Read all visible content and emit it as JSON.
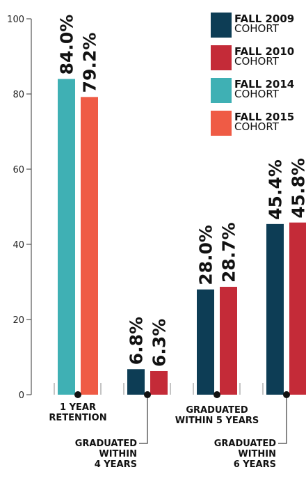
{
  "chart_data": {
    "type": "bar",
    "categories": [
      "1 YEAR\nRETENTION",
      "GRADUATED\nWITHIN\n4 YEARS",
      "GRADUATED\nWITHIN 5 YEARS",
      "GRADUATED\nWITHIN\n6 YEARS"
    ],
    "series": [
      {
        "name": "FALL 2009\nCOHORT",
        "color": "#0d3d55",
        "values": [
          null,
          6.8,
          28.0,
          45.4
        ],
        "value_labels": [
          null,
          "6.8%",
          "28.0%",
          "45.4%"
        ]
      },
      {
        "name": "FALL 2010\nCOHORT",
        "color": "#c42b38",
        "values": [
          null,
          6.3,
          28.7,
          45.8
        ],
        "value_labels": [
          null,
          "6.3%",
          "28.7%",
          "45.8%"
        ]
      },
      {
        "name": "FALL 2014\nCOHORT",
        "color": "#3fb0b4",
        "values": [
          84.0,
          null,
          null,
          null
        ],
        "value_labels": [
          "84.0%",
          null,
          null,
          null
        ]
      },
      {
        "name": "FALL 2015\nCOHORT",
        "color": "#ef5b45",
        "values": [
          79.2,
          null,
          null,
          null
        ],
        "value_labels": [
          "79.2%",
          null,
          null,
          null
        ]
      }
    ],
    "ylim": [
      0,
      100
    ],
    "yticks": [
      0,
      20,
      40,
      60,
      80,
      100
    ]
  }
}
